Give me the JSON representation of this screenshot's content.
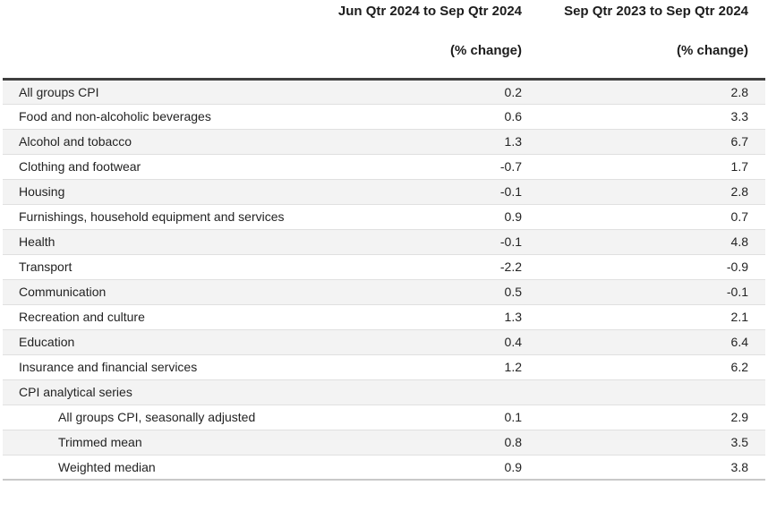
{
  "chart_data": {
    "type": "table",
    "title": "",
    "header": {
      "period_labels": [
        "Jun Qtr 2024 to Sep Qtr 2024",
        "Sep Qtr 2023 to Sep Qtr 2024"
      ],
      "unit_labels": [
        "(% change)",
        "(% change)"
      ]
    },
    "rows": [
      {
        "label": "All groups CPI",
        "values": [
          "0.2",
          "2.8"
        ],
        "indent": false
      },
      {
        "label": "Food and non-alcoholic beverages",
        "values": [
          "0.6",
          "3.3"
        ],
        "indent": false
      },
      {
        "label": "Alcohol and tobacco",
        "values": [
          "1.3",
          "6.7"
        ],
        "indent": false
      },
      {
        "label": "Clothing and footwear",
        "values": [
          "-0.7",
          "1.7"
        ],
        "indent": false
      },
      {
        "label": "Housing",
        "values": [
          "-0.1",
          "2.8"
        ],
        "indent": false
      },
      {
        "label": "Furnishings, household equipment and services",
        "values": [
          "0.9",
          "0.7"
        ],
        "indent": false
      },
      {
        "label": "Health",
        "values": [
          "-0.1",
          "4.8"
        ],
        "indent": false
      },
      {
        "label": "Transport",
        "values": [
          "-2.2",
          "-0.9"
        ],
        "indent": false
      },
      {
        "label": "Communication",
        "values": [
          "0.5",
          "-0.1"
        ],
        "indent": false
      },
      {
        "label": "Recreation and culture",
        "values": [
          "1.3",
          "2.1"
        ],
        "indent": false
      },
      {
        "label": "Education",
        "values": [
          "0.4",
          "6.4"
        ],
        "indent": false
      },
      {
        "label": "Insurance and financial services",
        "values": [
          "1.2",
          "6.2"
        ],
        "indent": false
      },
      {
        "label": "CPI analytical series",
        "values": [
          "",
          ""
        ],
        "indent": false
      },
      {
        "label": "All groups CPI, seasonally adjusted",
        "values": [
          "0.1",
          "2.9"
        ],
        "indent": true
      },
      {
        "label": "Trimmed mean",
        "values": [
          "0.8",
          "3.5"
        ],
        "indent": true
      },
      {
        "label": "Weighted median",
        "values": [
          "0.9",
          "3.8"
        ],
        "indent": true
      }
    ],
    "layout": {
      "value_columns_align": "right",
      "striped_rows": "odd",
      "indent_group_label": "CPI analytical series"
    }
  },
  "colors": {
    "stripe_row_bg": "#f3f3f3",
    "row_border": "#e0e0e0",
    "header_rule": "#3f3f3f",
    "bottom_rule": "#c9c9c9",
    "text": "#232323",
    "background": "#ffffff"
  }
}
